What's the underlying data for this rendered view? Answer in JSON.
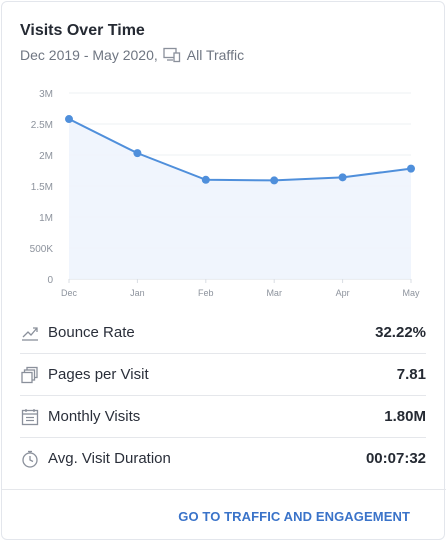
{
  "widget": {
    "title": "Visits Over Time",
    "date_range": "Dec 2019 - May 2020,",
    "traffic_filter": "All Traffic",
    "accent_color": "#4f8fdb"
  },
  "chart_data": {
    "type": "area",
    "x": [
      "Dec",
      "Jan",
      "Feb",
      "Mar",
      "Apr",
      "May"
    ],
    "series": [
      {
        "values": [
          2580000,
          2030000,
          1600000,
          1590000,
          1640000,
          1780000
        ]
      }
    ],
    "y_ticks": [
      "0",
      "500K",
      "1M",
      "1.5M",
      "2M",
      "2.5M",
      "3M"
    ],
    "ylim": [
      0,
      3000000
    ],
    "grid": true
  },
  "metrics": [
    {
      "icon": "trend-icon",
      "label": "Bounce Rate",
      "value": "32.22%"
    },
    {
      "icon": "pages-icon",
      "label": "Pages per Visit",
      "value": "7.81"
    },
    {
      "icon": "calendar-icon",
      "label": "Monthly Visits",
      "value": "1.80M"
    },
    {
      "icon": "stopwatch-icon",
      "label": "Avg. Visit Duration",
      "value": "00:07:32"
    }
  ],
  "footer": {
    "cta_label": "GO TO TRAFFIC AND ENGAGEMENT"
  }
}
